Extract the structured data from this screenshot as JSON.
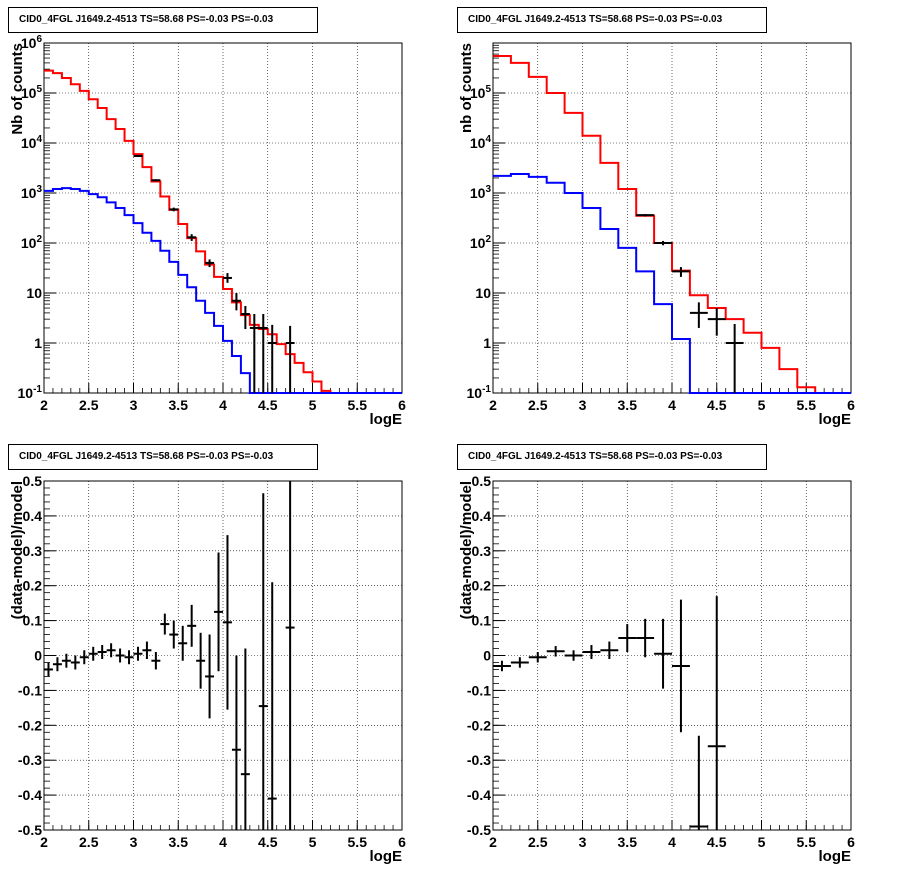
{
  "charts": [
    {
      "title": "CID0_4FGL J1649.2-4513 TS=58.68 PS=-0.03 PS=-0.03",
      "chart_data": {
        "type": "line",
        "title": "CID0_4FGL J1649.2-4513 TS=58.68 PS=-0.03 PS=-0.03",
        "xlabel": "logE",
        "ylabel": "Nb of counts",
        "xlim": [
          2,
          6
        ],
        "ylim": [
          0.1,
          1000000
        ],
        "yscale": "log",
        "grid": true,
        "xticks": [
          "2",
          "2.5",
          "3",
          "3.5",
          "4",
          "4.5",
          "5",
          "5.5",
          "6"
        ],
        "yticks": [
          "10^-1",
          "1",
          "10",
          "10^2",
          "10^3",
          "10^4",
          "10^5",
          "10^6"
        ],
        "bin_edges": [
          2.0,
          2.1,
          2.2,
          2.3,
          2.4,
          2.5,
          2.6,
          2.7,
          2.8,
          2.9,
          3.0,
          3.1,
          3.2,
          3.3,
          3.4,
          3.5,
          3.6,
          3.7,
          3.8,
          3.9,
          4.0,
          4.1,
          4.2,
          4.3,
          4.4,
          4.5,
          4.6,
          4.7,
          4.8,
          4.9,
          5.0,
          5.1,
          5.2,
          5.3,
          5.4,
          5.5,
          5.6,
          5.7,
          5.8,
          5.9,
          6.0
        ],
        "series": [
          {
            "color": "#ff0000",
            "style": "hist",
            "values": [
              280000,
              250000,
              200000,
              150000,
              110000,
              75000,
              50000,
              30000,
              19000,
              11000,
              6000,
              3300,
              1700,
              850,
              460,
              240,
              125,
              68,
              37,
              21,
              12,
              6.5,
              3.6,
              2.3,
              1.9,
              1.5,
              0.95,
              0.6,
              0.4,
              0.26,
              0.17,
              0.11,
              0.1,
              0.1,
              0.1,
              0.1,
              0.1,
              0.1,
              0.1,
              0.1
            ]
          },
          {
            "color": "#0000ff",
            "style": "hist",
            "values": [
              1100,
              1200,
              1250,
              1200,
              1100,
              950,
              820,
              650,
              500,
              360,
              250,
              160,
              110,
              70,
              42,
              23,
              13,
              7,
              4,
              2.2,
              1.1,
              0.55,
              0.25,
              0.1,
              0.1,
              0.1,
              0.1,
              0.1,
              0.1,
              0.1,
              0.1,
              0.1,
              0.1,
              0.1,
              0.1,
              0.1,
              0.1,
              0.1,
              0.1,
              0.1
            ]
          },
          {
            "color": "#000000",
            "style": "points",
            "points": [
              {
                "x": 3.05,
                "y": 5500,
                "lo": 5350,
                "hi": 5650
              },
              {
                "x": 3.25,
                "y": 1800,
                "lo": 1720,
                "hi": 1880
              },
              {
                "x": 3.45,
                "y": 470,
                "lo": 430,
                "hi": 510
              },
              {
                "x": 3.65,
                "y": 130,
                "lo": 110,
                "hi": 150
              },
              {
                "x": 3.85,
                "y": 40,
                "lo": 33,
                "hi": 47
              },
              {
                "x": 4.05,
                "y": 20,
                "lo": 16,
                "hi": 25
              },
              {
                "x": 4.15,
                "y": 7,
                "lo": 4.5,
                "hi": 10
              },
              {
                "x": 4.25,
                "y": 3.8,
                "lo": 1.9,
                "hi": 5.5
              },
              {
                "x": 4.35,
                "y": 2,
                "lo": 0.1,
                "hi": 3.8
              },
              {
                "x": 4.45,
                "y": 2,
                "lo": 0.1,
                "hi": 3.8
              },
              {
                "x": 4.55,
                "y": 1,
                "lo": 0.1,
                "hi": 2.3
              },
              {
                "x": 4.75,
                "y": 1,
                "lo": 0.1,
                "hi": 2.2
              }
            ]
          }
        ]
      }
    },
    {
      "title": "CID0_4FGL J1649.2-4513 TS=58.68 PS=-0.03 PS=-0.03",
      "chart_data": {
        "type": "line",
        "title": "CID0_4FGL J1649.2-4513 TS=58.68 PS=-0.03 PS=-0.03",
        "xlabel": "logE",
        "ylabel": "nb of counts",
        "xlim": [
          2,
          6
        ],
        "ylim": [
          0.1,
          1000000
        ],
        "yscale": "log",
        "grid": true,
        "xticks": [
          "2",
          "2.5",
          "3",
          "3.5",
          "4",
          "4.5",
          "5",
          "5.5",
          "6"
        ],
        "yticks": [
          "10^-1",
          "1",
          "10",
          "10^2",
          "10^3",
          "10^4",
          "10^5"
        ],
        "bin_edges": [
          2.0,
          2.2,
          2.4,
          2.6,
          2.8,
          3.0,
          3.2,
          3.4,
          3.6,
          3.8,
          4.0,
          4.2,
          4.4,
          4.6,
          4.8,
          5.0,
          5.2,
          5.4,
          5.6,
          5.8,
          6.0
        ],
        "series": [
          {
            "color": "#ff0000",
            "style": "hist",
            "values": [
              550000,
              400000,
              210000,
              100000,
              40000,
              14000,
              4000,
              1200,
              350,
              100,
              28,
              9,
              5,
              3,
              1.6,
              0.8,
              0.3,
              0.13,
              0.1,
              0.1
            ]
          },
          {
            "color": "#0000ff",
            "style": "hist",
            "values": [
              2200,
              2400,
              2100,
              1600,
              1000,
              500,
              190,
              80,
              27,
              6,
              1.2,
              0.1,
              0.1,
              0.1,
              0.1,
              0.1,
              0.1,
              0.1,
              0.1,
              0.1
            ]
          },
          {
            "color": "#000000",
            "style": "points",
            "points": [
              {
                "x": 3.7,
                "y": 360,
                "lo": 340,
                "hi": 380
              },
              {
                "x": 3.9,
                "y": 100,
                "lo": 90,
                "hi": 110
              },
              {
                "x": 4.1,
                "y": 27,
                "lo": 21,
                "hi": 33
              },
              {
                "x": 4.3,
                "y": 4,
                "lo": 2,
                "hi": 6.5
              },
              {
                "x": 4.5,
                "y": 3,
                "lo": 1.4,
                "hi": 5
              },
              {
                "x": 4.7,
                "y": 1,
                "lo": 0.1,
                "hi": 2.4
              }
            ]
          }
        ]
      }
    },
    {
      "title": "CID0_4FGL J1649.2-4513 TS=58.68 PS=-0.03 PS=-0.03",
      "chart_data": {
        "type": "scatter",
        "title": "CID0_4FGL J1649.2-4513 TS=58.68 PS=-0.03 PS=-0.03",
        "xlabel": "logE",
        "ylabel": "(data-model)/model",
        "xlim": [
          2,
          6
        ],
        "ylim": [
          -0.5,
          0.5
        ],
        "grid": true,
        "xticks": [
          "2",
          "2.5",
          "3",
          "3.5",
          "4",
          "4.5",
          "5",
          "5.5",
          "6"
        ],
        "yticks": [
          "-0.5",
          "-0.4",
          "-0.3",
          "-0.2",
          "-0.1",
          "0",
          "0.1",
          "0.2",
          "0.3",
          "0.4",
          "0.5"
        ],
        "bin_width": 0.1,
        "points": [
          {
            "x": 2.05,
            "y": -0.04,
            "err": 0.02
          },
          {
            "x": 2.15,
            "y": -0.025,
            "err": 0.02
          },
          {
            "x": 2.25,
            "y": -0.015,
            "err": 0.02
          },
          {
            "x": 2.35,
            "y": -0.02,
            "err": 0.02
          },
          {
            "x": 2.45,
            "y": -0.005,
            "err": 0.02
          },
          {
            "x": 2.55,
            "y": 0.005,
            "err": 0.02
          },
          {
            "x": 2.65,
            "y": 0.01,
            "err": 0.02
          },
          {
            "x": 2.75,
            "y": 0.015,
            "err": 0.02
          },
          {
            "x": 2.85,
            "y": 0.0,
            "err": 0.02
          },
          {
            "x": 2.95,
            "y": -0.005,
            "err": 0.02
          },
          {
            "x": 3.05,
            "y": 0.005,
            "err": 0.02
          },
          {
            "x": 3.15,
            "y": 0.015,
            "err": 0.025
          },
          {
            "x": 3.25,
            "y": -0.015,
            "err": 0.025
          },
          {
            "x": 3.35,
            "y": 0.09,
            "err": 0.03
          },
          {
            "x": 3.45,
            "y": 0.06,
            "err": 0.04
          },
          {
            "x": 3.55,
            "y": 0.035,
            "err": 0.05
          },
          {
            "x": 3.65,
            "y": 0.085,
            "err": 0.06
          },
          {
            "x": 3.75,
            "y": -0.015,
            "err": 0.08
          },
          {
            "x": 3.85,
            "y": -0.06,
            "err": 0.12
          },
          {
            "x": 3.95,
            "y": 0.125,
            "err": 0.17
          },
          {
            "x": 4.05,
            "y": 0.095,
            "err": 0.25
          },
          {
            "x": 4.15,
            "y": -0.27,
            "err": 0.27
          },
          {
            "x": 4.25,
            "y": -0.34,
            "err": 0.36
          },
          {
            "x": 4.45,
            "y": -0.145,
            "err": 0.61
          },
          {
            "x": 4.55,
            "y": -0.41,
            "err": 0.62
          },
          {
            "x": 4.75,
            "y": 0.08,
            "err": 0.9
          }
        ]
      }
    },
    {
      "title": "CID0_4FGL J1649.2-4513 TS=58.68 PS=-0.03 PS=-0.03",
      "chart_data": {
        "type": "scatter",
        "title": "CID0_4FGL J1649.2-4513 TS=58.68 PS=-0.03 PS=-0.03",
        "xlabel": "logE",
        "ylabel": "(data-model)/model",
        "xlim": [
          2,
          6
        ],
        "ylim": [
          -0.5,
          0.5
        ],
        "grid": true,
        "xticks": [
          "2",
          "2.5",
          "3",
          "3.5",
          "4",
          "4.5",
          "5",
          "5.5",
          "6"
        ],
        "yticks": [
          "-0.5",
          "-0.4",
          "-0.3",
          "-0.2",
          "-0.1",
          "0",
          "0.1",
          "0.2",
          "0.3",
          "0.4",
          "0.5"
        ],
        "bin_width": 0.2,
        "points": [
          {
            "x": 2.1,
            "y": -0.03,
            "err": 0.015
          },
          {
            "x": 2.3,
            "y": -0.02,
            "err": 0.015
          },
          {
            "x": 2.5,
            "y": -0.005,
            "err": 0.015
          },
          {
            "x": 2.7,
            "y": 0.012,
            "err": 0.015
          },
          {
            "x": 2.9,
            "y": 0.0,
            "err": 0.015
          },
          {
            "x": 3.1,
            "y": 0.01,
            "err": 0.02
          },
          {
            "x": 3.3,
            "y": 0.015,
            "err": 0.025
          },
          {
            "x": 3.5,
            "y": 0.05,
            "err": 0.04
          },
          {
            "x": 3.7,
            "y": 0.05,
            "err": 0.055
          },
          {
            "x": 3.9,
            "y": 0.005,
            "err": 0.1
          },
          {
            "x": 4.1,
            "y": -0.03,
            "err": 0.19
          },
          {
            "x": 4.3,
            "y": -0.49,
            "err": 0.26
          },
          {
            "x": 4.5,
            "y": -0.26,
            "err": 0.43
          }
        ]
      }
    }
  ]
}
